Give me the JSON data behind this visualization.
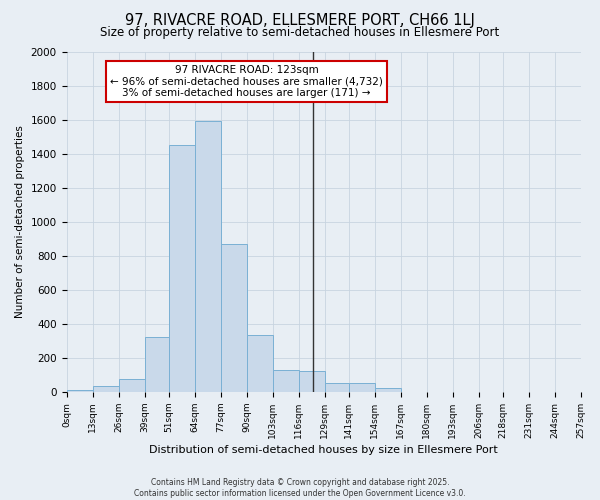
{
  "title": "97, RIVACRE ROAD, ELLESMERE PORT, CH66 1LJ",
  "subtitle": "Size of property relative to semi-detached houses in Ellesmere Port",
  "xlabel": "Distribution of semi-detached houses by size in Ellesmere Port",
  "ylabel": "Number of semi-detached properties",
  "bar_heights": [
    10,
    35,
    75,
    320,
    1450,
    1590,
    870,
    335,
    130,
    125,
    55,
    50,
    25,
    0,
    0,
    0,
    0,
    0,
    0,
    0
  ],
  "bin_edges": [
    0,
    13,
    26,
    39,
    51,
    64,
    77,
    90,
    103,
    116,
    129,
    141,
    154,
    167,
    180,
    193,
    206,
    218,
    231,
    244,
    257
  ],
  "tick_labels": [
    "0sqm",
    "13sqm",
    "26sqm",
    "39sqm",
    "51sqm",
    "64sqm",
    "77sqm",
    "90sqm",
    "103sqm",
    "116sqm",
    "129sqm",
    "141sqm",
    "154sqm",
    "167sqm",
    "180sqm",
    "193sqm",
    "206sqm",
    "218sqm",
    "231sqm",
    "244sqm",
    "257sqm"
  ],
  "bar_color": "#c9d9ea",
  "bar_edge_color": "#7ab0d4",
  "property_size": 123,
  "vline_color": "#333333",
  "annotation_title": "97 RIVACRE ROAD: 123sqm",
  "annotation_line1": "← 96% of semi-detached houses are smaller (4,732)",
  "annotation_line2": "3% of semi-detached houses are larger (171) →",
  "annotation_box_color": "#cc0000",
  "annotation_bg_color": "#ffffff",
  "ylim": [
    0,
    2000
  ],
  "yticks": [
    0,
    200,
    400,
    600,
    800,
    1000,
    1200,
    1400,
    1600,
    1800,
    2000
  ],
  "fig_bg_color": "#e8eef4",
  "grid_color": "#c8d4e0",
  "footer1": "Contains HM Land Registry data © Crown copyright and database right 2025.",
  "footer2": "Contains public sector information licensed under the Open Government Licence v3.0."
}
